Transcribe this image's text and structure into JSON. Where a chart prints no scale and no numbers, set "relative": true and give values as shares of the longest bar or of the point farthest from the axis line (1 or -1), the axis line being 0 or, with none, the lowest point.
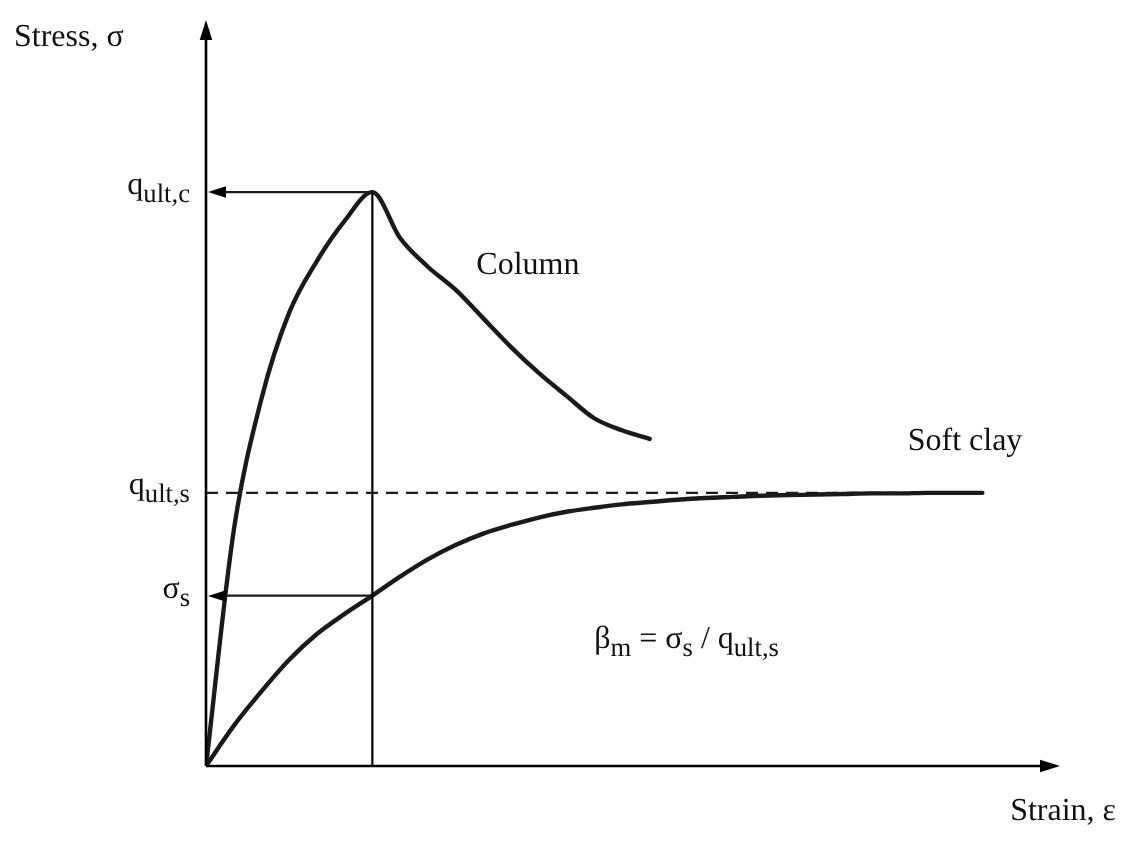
{
  "chart_data": {
    "type": "line",
    "relative": true,
    "xlabel": "Strain, ε",
    "ylabel": "Stress, σ",
    "line_style": "solid",
    "categories": [
      null,
      null,
      null,
      null,
      null,
      null,
      null,
      null,
      null,
      null,
      null,
      null,
      null,
      null,
      null,
      null,
      null,
      null,
      null,
      null,
      null,
      null,
      null,
      null,
      null,
      null,
      null,
      null,
      null
    ],
    "series": [
      {
        "name": "Column",
        "color": "#1a1a1a",
        "values": [
          0,
          0.41,
          0.64,
          0.79,
          0.88,
          0.95,
          1,
          0.92,
          0.87,
          0.83,
          0.78,
          0.73,
          0.685,
          0.645,
          0.606,
          0.585,
          0.57,
          null,
          null,
          null,
          null,
          null,
          null,
          null,
          null,
          null,
          null,
          null,
          null
        ]
      },
      {
        "name": "Soft clay",
        "color": "#1a1a1a",
        "values": [
          0,
          0.07,
          0.13,
          0.185,
          0.23,
          0.265,
          0.297,
          0.33,
          0.36,
          0.385,
          0.405,
          0.42,
          0.433,
          0.443,
          0.45,
          0.456,
          0.46,
          0.464,
          0.467,
          0.469,
          0.471,
          0.472,
          0.473,
          0.474,
          0.475,
          0.475,
          0.476,
          0.476,
          0.476
        ]
      }
    ],
    "ref_lines": [
      {
        "axis": "y",
        "value": 1,
        "label": "q$_{ult,c}$",
        "line_style": "solid",
        "color": "#1a1a1a"
      },
      {
        "axis": "y",
        "value": 0.476,
        "label": "q$_{ult,s}$",
        "line_style": "dashed",
        "color": "#1a1a1a"
      },
      {
        "axis": "y",
        "value": 0.297,
        "label": "σ$_{s}$",
        "line_style": "solid",
        "color": "#1a1a1a"
      }
    ],
    "annotations": [
      "β$_{m}$ = σ$_{s}$ / q$_{ult,s}$"
    ]
  }
}
